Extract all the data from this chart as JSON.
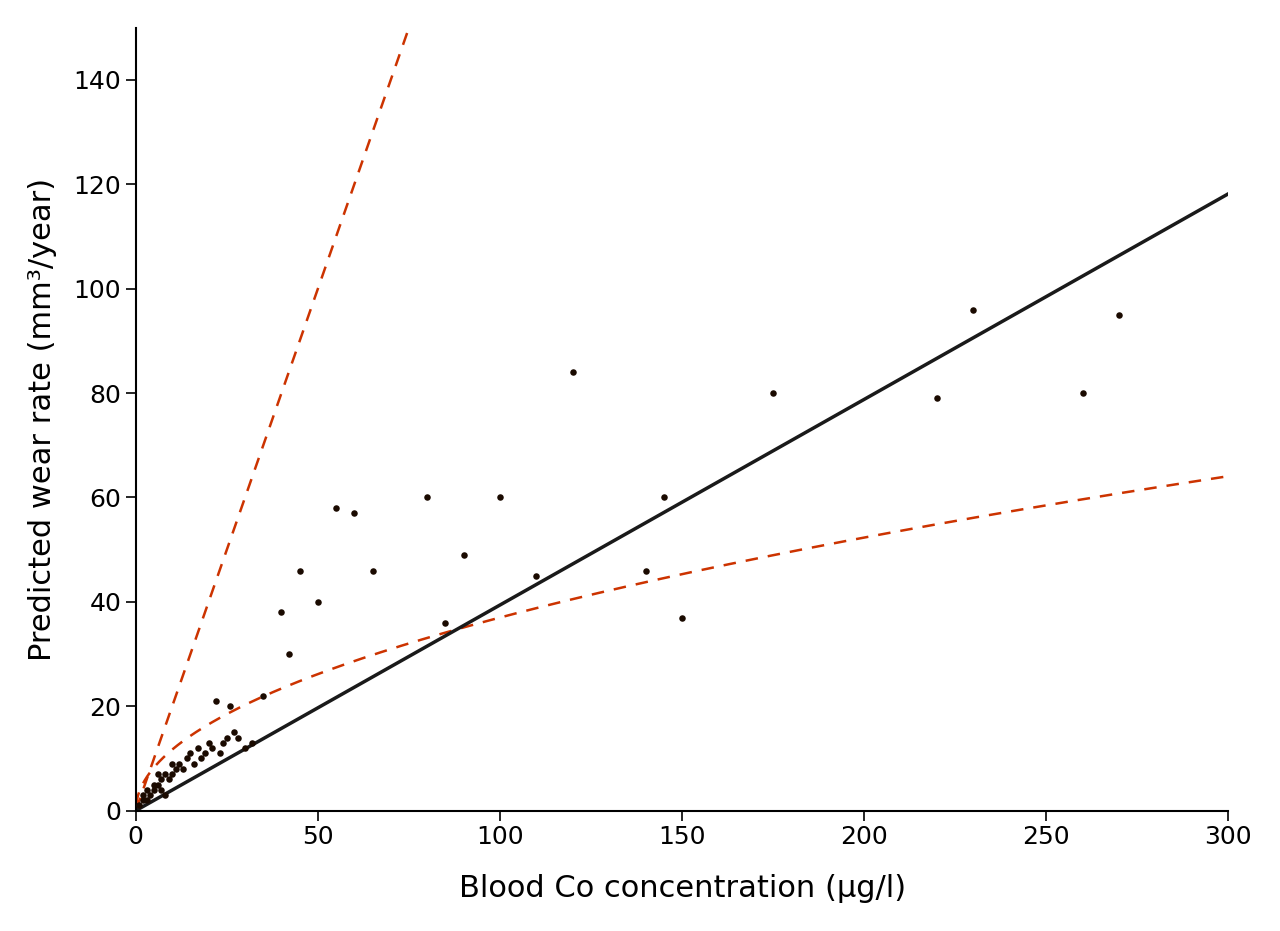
{
  "scatter_x": [
    1,
    2,
    2,
    3,
    3,
    4,
    5,
    5,
    6,
    6,
    7,
    7,
    8,
    8,
    9,
    10,
    10,
    11,
    12,
    13,
    14,
    15,
    16,
    17,
    18,
    19,
    20,
    21,
    22,
    23,
    24,
    25,
    26,
    27,
    28,
    30,
    32,
    35,
    40,
    42,
    45,
    50,
    55,
    60,
    65,
    80,
    85,
    90,
    100,
    110,
    120,
    140,
    145,
    150,
    175,
    220,
    230,
    260,
    270
  ],
  "scatter_y": [
    1,
    2,
    3,
    2,
    4,
    3,
    5,
    4,
    5,
    7,
    4,
    6,
    3,
    7,
    6,
    7,
    9,
    8,
    9,
    8,
    10,
    11,
    9,
    12,
    10,
    11,
    13,
    12,
    21,
    11,
    13,
    14,
    20,
    15,
    14,
    12,
    13,
    22,
    38,
    30,
    46,
    40,
    58,
    57,
    46,
    60,
    36,
    49,
    60,
    45,
    84,
    46,
    60,
    37,
    80,
    79,
    96,
    80,
    95
  ],
  "regression_color": "#1a1a1a",
  "ci_color": "#cc3300",
  "scatter_color": "#1a0a00",
  "xlim": [
    0,
    300
  ],
  "ylim": [
    0,
    150
  ],
  "yticks": [
    0,
    20,
    40,
    60,
    80,
    100,
    120,
    140
  ],
  "xticks": [
    0,
    50,
    100,
    150,
    200,
    250,
    300
  ],
  "xlabel": "Blood Co concentration (μg/l)",
  "ylabel": "Predicted wear rate (mm³/year)",
  "xlabel_fontsize": 22,
  "ylabel_fontsize": 22,
  "tick_fontsize": 18,
  "regression_slope": 0.394,
  "ci_upper_slope": 2.0,
  "ci_lower_a": 3.7,
  "ci_lower_b": 0.5,
  "background_color": "#ffffff",
  "linewidth_main": 2.5,
  "linewidth_ci": 1.8
}
